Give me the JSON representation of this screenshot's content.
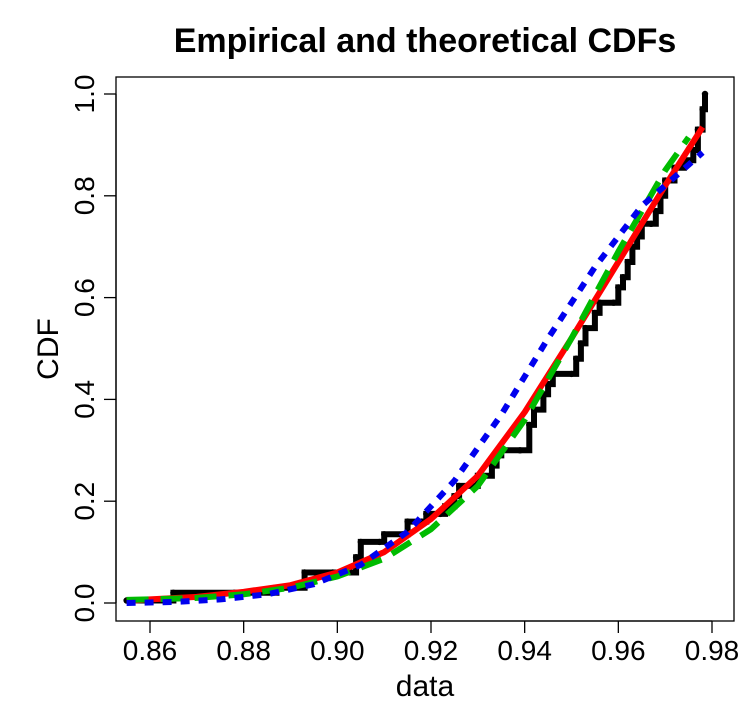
{
  "chart_data": {
    "type": "line",
    "title": "Empirical and theoretical CDFs",
    "xlabel": "data",
    "ylabel": "CDF",
    "xlim": [
      0.854,
      0.98
    ],
    "ylim": [
      0.0,
      1.0
    ],
    "x_ticks": [
      0.86,
      0.88,
      0.9,
      0.92,
      0.94,
      0.96,
      0.98
    ],
    "x_tick_labels": [
      "0.86",
      "0.88",
      "0.90",
      "0.92",
      "0.94",
      "0.96",
      "0.98"
    ],
    "y_ticks": [
      0.0,
      0.2,
      0.4,
      0.6,
      0.8,
      1.0
    ],
    "y_tick_labels": [
      "0.0",
      "0.2",
      "0.4",
      "0.6",
      "0.8",
      "1.0"
    ],
    "grid": false,
    "empirical_cdf": {
      "color": "#000000",
      "points": [
        [
          0.855,
          0.005
        ],
        [
          0.865,
          0.02
        ],
        [
          0.878,
          0.02
        ],
        [
          0.887,
          0.03
        ],
        [
          0.893,
          0.06
        ],
        [
          0.899,
          0.06
        ],
        [
          0.904,
          0.09
        ],
        [
          0.905,
          0.12
        ],
        [
          0.909,
          0.12
        ],
        [
          0.91,
          0.135
        ],
        [
          0.914,
          0.135
        ],
        [
          0.915,
          0.16
        ],
        [
          0.918,
          0.16
        ],
        [
          0.919,
          0.175
        ],
        [
          0.922,
          0.175
        ],
        [
          0.923,
          0.19
        ],
        [
          0.925,
          0.21
        ],
        [
          0.926,
          0.23
        ],
        [
          0.929,
          0.23
        ],
        [
          0.93,
          0.25
        ],
        [
          0.933,
          0.27
        ],
        [
          0.934,
          0.29
        ],
        [
          0.935,
          0.3
        ],
        [
          0.939,
          0.3
        ],
        [
          0.941,
          0.35
        ],
        [
          0.942,
          0.38
        ],
        [
          0.944,
          0.41
        ],
        [
          0.945,
          0.43
        ],
        [
          0.946,
          0.45
        ],
        [
          0.95,
          0.45
        ],
        [
          0.951,
          0.48
        ],
        [
          0.952,
          0.51
        ],
        [
          0.953,
          0.54
        ],
        [
          0.955,
          0.57
        ],
        [
          0.956,
          0.59
        ],
        [
          0.959,
          0.59
        ],
        [
          0.96,
          0.62
        ],
        [
          0.961,
          0.64
        ],
        [
          0.962,
          0.67
        ],
        [
          0.963,
          0.7
        ],
        [
          0.964,
          0.72
        ],
        [
          0.965,
          0.745
        ],
        [
          0.967,
          0.745
        ],
        [
          0.968,
          0.77
        ],
        [
          0.969,
          0.8
        ],
        [
          0.97,
          0.83
        ],
        [
          0.972,
          0.855
        ],
        [
          0.974,
          0.87
        ],
        [
          0.976,
          0.89
        ],
        [
          0.977,
          0.93
        ],
        [
          0.978,
          0.97
        ],
        [
          0.9785,
          1.0
        ]
      ]
    },
    "series": [
      {
        "color": "#ff0000",
        "dash": "solid",
        "points": [
          [
            0.855,
            0.004
          ],
          [
            0.86,
            0.007
          ],
          [
            0.87,
            0.012
          ],
          [
            0.88,
            0.022
          ],
          [
            0.89,
            0.035
          ],
          [
            0.9,
            0.06
          ],
          [
            0.91,
            0.1
          ],
          [
            0.92,
            0.165
          ],
          [
            0.93,
            0.25
          ],
          [
            0.94,
            0.375
          ],
          [
            0.95,
            0.52
          ],
          [
            0.96,
            0.67
          ],
          [
            0.97,
            0.82
          ],
          [
            0.978,
            0.935
          ]
        ]
      },
      {
        "color": "#00bb00",
        "dash": "long-dash",
        "points": [
          [
            0.855,
            0.006
          ],
          [
            0.86,
            0.007
          ],
          [
            0.87,
            0.01
          ],
          [
            0.88,
            0.017
          ],
          [
            0.89,
            0.03
          ],
          [
            0.9,
            0.052
          ],
          [
            0.91,
            0.087
          ],
          [
            0.92,
            0.145
          ],
          [
            0.93,
            0.23
          ],
          [
            0.94,
            0.36
          ],
          [
            0.95,
            0.52
          ],
          [
            0.96,
            0.69
          ],
          [
            0.97,
            0.85
          ],
          [
            0.975,
            0.915
          ]
        ]
      },
      {
        "color": "#0000ee",
        "dash": "short-dash",
        "points": [
          [
            0.855,
            0.0
          ],
          [
            0.865,
            0.002
          ],
          [
            0.875,
            0.007
          ],
          [
            0.885,
            0.017
          ],
          [
            0.895,
            0.037
          ],
          [
            0.905,
            0.075
          ],
          [
            0.915,
            0.14
          ],
          [
            0.925,
            0.24
          ],
          [
            0.935,
            0.37
          ],
          [
            0.945,
            0.52
          ],
          [
            0.955,
            0.66
          ],
          [
            0.965,
            0.78
          ],
          [
            0.978,
            0.885
          ]
        ]
      }
    ]
  }
}
